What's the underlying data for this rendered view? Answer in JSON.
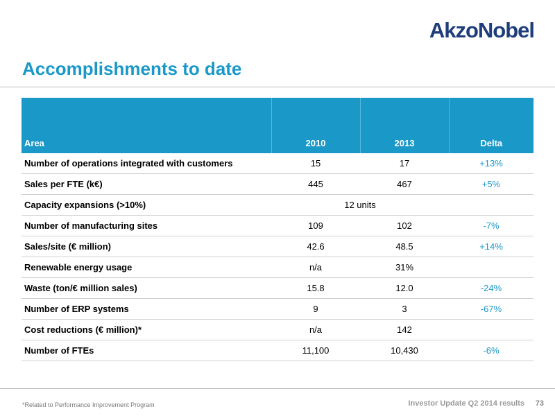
{
  "brand": {
    "logo_text": "AkzoNobel",
    "color": "#1f3d7a"
  },
  "accent_color": "#1a98c8",
  "title": "Accomplishments to date",
  "table": {
    "headers": [
      "Area",
      "2010",
      "2013",
      "Delta"
    ],
    "rows": [
      {
        "area": "Number of operations integrated with customers",
        "y2010": "15",
        "y2013": "17",
        "delta": "+13%"
      },
      {
        "area": "Sales per FTE (k€)",
        "y2010": "445",
        "y2013": "467",
        "delta": "+5%"
      },
      {
        "area": "Capacity expansions (>10%)",
        "merged": "12 units"
      },
      {
        "area": "Number of manufacturing sites",
        "y2010": "109",
        "y2013": "102",
        "delta": "-7%"
      },
      {
        "area": "Sales/site (€ million)",
        "y2010": "42.6",
        "y2013": "48.5",
        "delta": "+14%"
      },
      {
        "area": "Renewable energy usage",
        "y2010": "n/a",
        "y2013": "31%",
        "delta": ""
      },
      {
        "area": "Waste (ton/€ million sales)",
        "y2010": "15.8",
        "y2013": "12.0",
        "delta": "-24%"
      },
      {
        "area": "Number of ERP systems",
        "y2010": "9",
        "y2013": "3",
        "delta": "-67%"
      },
      {
        "area": "Cost reductions (€ million)*",
        "y2010": "n/a",
        "y2013": "142",
        "delta": ""
      },
      {
        "area": "Number of FTEs",
        "y2010": "11,100",
        "y2013": "10,430",
        "delta": "-6%"
      }
    ]
  },
  "footnote": "*Related to Performance Improvement Program",
  "footer": {
    "text": "Investor Update Q2 2014 results",
    "page_number": "73"
  }
}
